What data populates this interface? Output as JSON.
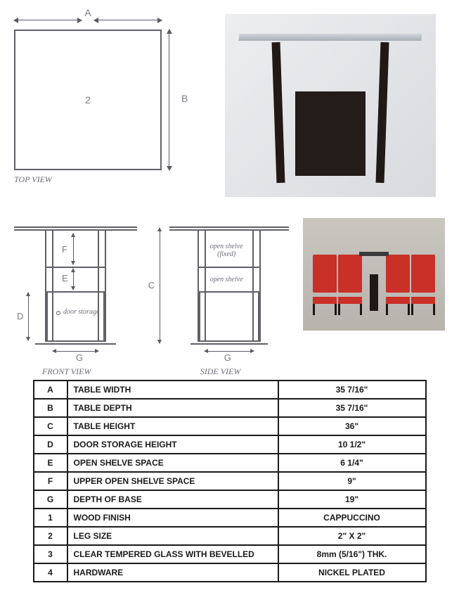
{
  "topview": {
    "label_A": "A",
    "label_B": "B",
    "center_num": "2",
    "caption": "TOP VIEW"
  },
  "frontview": {
    "label_F": "F",
    "label_E": "E",
    "label_D": "D",
    "label_G": "G",
    "door_text": "door storage",
    "caption": "FRONT VIEW"
  },
  "sideview": {
    "label_C": "C",
    "label_G": "G",
    "shelf_fixed": "open shelve\n(fixed)",
    "shelf_open": "open shelve",
    "caption": "SIDE VIEW"
  },
  "spec_rows": [
    {
      "k": "A",
      "d": "TABLE WIDTH",
      "v": "35 7/16\""
    },
    {
      "k": "B",
      "d": "TABLE DEPTH",
      "v": "35 7/16\""
    },
    {
      "k": "C",
      "d": "TABLE HEIGHT",
      "v": "36\""
    },
    {
      "k": "D",
      "d": "DOOR STORAGE HEIGHT",
      "v": "10 1/2\""
    },
    {
      "k": "E",
      "d": "OPEN SHELVE SPACE",
      "v": "6 1/4\""
    },
    {
      "k": "F",
      "d": "UPPER OPEN SHELVE SPACE",
      "v": "9\""
    },
    {
      "k": "G",
      "d": "DEPTH OF BASE",
      "v": "19\""
    },
    {
      "k": "1",
      "d": "WOOD FINISH",
      "v": "CAPPUCCINO"
    },
    {
      "k": "2",
      "d": "LEG SIZE",
      "v": "2\" X 2\""
    },
    {
      "k": "3",
      "d": "CLEAR TEMPERED GLASS WITH BEVELLED",
      "v": "8mm (5/16\") THK."
    },
    {
      "k": "4",
      "d": "HARDWARE",
      "v": "NICKEL PLATED"
    }
  ],
  "colors": {
    "line": "#606068",
    "text": "#555560",
    "caption": "#6c6c78",
    "tableBorder": "#1a1a1a",
    "chairRed": "#c83028",
    "dark": "#211916"
  }
}
